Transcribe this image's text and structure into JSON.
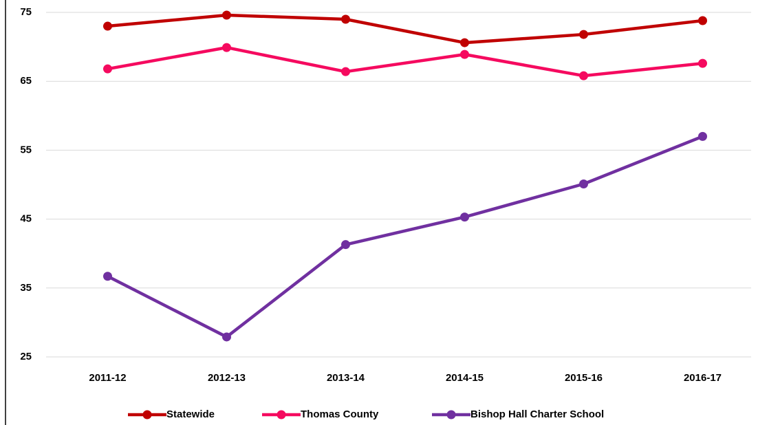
{
  "chart_data": {
    "type": "line",
    "categories": [
      "2011-12",
      "2012-13",
      "2013-14",
      "2014-15",
      "2015-16",
      "2016-17"
    ],
    "series": [
      {
        "name": "Statewide",
        "color": "#c00000",
        "values": [
          73.0,
          74.6,
          74.0,
          70.6,
          71.8,
          73.8
        ]
      },
      {
        "name": "Thomas County",
        "color": "#f50a5f",
        "values": [
          66.8,
          69.9,
          66.4,
          68.9,
          65.8,
          67.6
        ]
      },
      {
        "name": "Bishop Hall Charter School",
        "color": "#7030a0",
        "values": [
          36.7,
          27.9,
          41.3,
          45.3,
          50.1,
          57.0
        ]
      }
    ],
    "ylim": [
      25,
      75
    ],
    "yticks": [
      25,
      35,
      45,
      55,
      65,
      75
    ],
    "grid": true,
    "legend": "bottom"
  }
}
